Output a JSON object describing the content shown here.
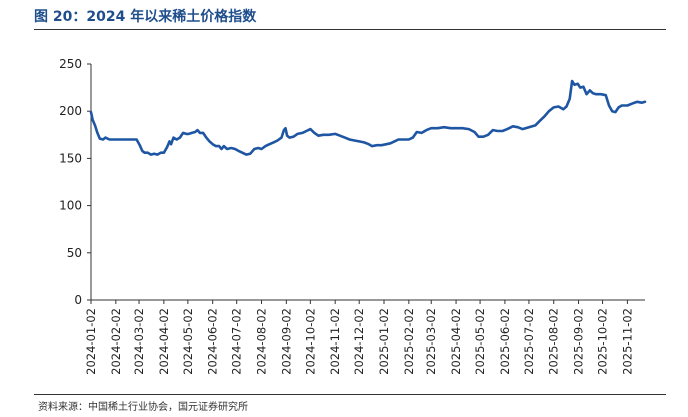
{
  "header": {
    "title": "图 20：2024 年以来稀土价格指数"
  },
  "footer": {
    "source": "资料来源：中国稀土行业协会，国元证券研究所"
  },
  "chart_data": {
    "type": "line",
    "title": "",
    "xlabel": "",
    "ylabel": "",
    "ylim": [
      0,
      250
    ],
    "yticks": [
      0,
      50,
      100,
      150,
      200,
      250
    ],
    "xlim": [
      "2024-01-02",
      "2025-11-24"
    ],
    "xticks": [
      "2024-01-02",
      "2024-02-02",
      "2024-03-02",
      "2024-04-02",
      "2024-05-02",
      "2024-06-02",
      "2024-07-02",
      "2024-08-02",
      "2024-09-02",
      "2024-10-02",
      "2024-11-02",
      "2024-12-02",
      "2025-01-02",
      "2025-02-02",
      "2025-03-02",
      "2025-04-02",
      "2025-05-02",
      "2025-06-02",
      "2025-07-02",
      "2025-08-02",
      "2025-09-02",
      "2025-10-02",
      "2025-11-02"
    ],
    "grid": false,
    "legend": "none",
    "color": "#1f56a3",
    "series": [
      {
        "name": "",
        "points": [
          [
            "2024-01-02",
            199
          ],
          [
            "2024-01-04",
            191
          ],
          [
            "2024-01-07",
            185
          ],
          [
            "2024-01-10",
            177
          ],
          [
            "2024-01-13",
            171
          ],
          [
            "2024-01-17",
            170
          ],
          [
            "2024-01-20",
            172
          ],
          [
            "2024-01-25",
            170
          ],
          [
            "2024-02-02",
            170
          ],
          [
            "2024-02-15",
            170
          ],
          [
            "2024-02-28",
            170
          ],
          [
            "2024-03-03",
            164
          ],
          [
            "2024-03-06",
            158
          ],
          [
            "2024-03-09",
            156
          ],
          [
            "2024-03-13",
            156
          ],
          [
            "2024-03-17",
            154
          ],
          [
            "2024-03-21",
            155
          ],
          [
            "2024-03-25",
            154
          ],
          [
            "2024-03-29",
            156
          ],
          [
            "2024-04-02",
            156
          ],
          [
            "2024-04-06",
            162
          ],
          [
            "2024-04-09",
            168
          ],
          [
            "2024-04-11",
            165
          ],
          [
            "2024-04-14",
            172
          ],
          [
            "2024-04-18",
            170
          ],
          [
            "2024-04-22",
            172
          ],
          [
            "2024-04-26",
            177
          ],
          [
            "2024-04-30",
            176
          ],
          [
            "2024-05-03",
            176
          ],
          [
            "2024-05-07",
            177
          ],
          [
            "2024-05-11",
            178
          ],
          [
            "2024-05-14",
            180
          ],
          [
            "2024-05-17",
            177
          ],
          [
            "2024-05-21",
            177
          ],
          [
            "2024-05-25",
            172
          ],
          [
            "2024-05-29",
            168
          ],
          [
            "2024-06-02",
            165
          ],
          [
            "2024-06-06",
            163
          ],
          [
            "2024-06-10",
            163
          ],
          [
            "2024-06-13",
            160
          ],
          [
            "2024-06-16",
            163
          ],
          [
            "2024-06-20",
            160
          ],
          [
            "2024-06-25",
            161
          ],
          [
            "2024-06-30",
            160
          ],
          [
            "2024-07-04",
            158
          ],
          [
            "2024-07-09",
            156
          ],
          [
            "2024-07-14",
            154
          ],
          [
            "2024-07-19",
            155
          ],
          [
            "2024-07-24",
            160
          ],
          [
            "2024-07-29",
            161
          ],
          [
            "2024-08-02",
            160
          ],
          [
            "2024-08-07",
            163
          ],
          [
            "2024-08-12",
            165
          ],
          [
            "2024-08-17",
            167
          ],
          [
            "2024-08-22",
            169
          ],
          [
            "2024-08-27",
            172
          ],
          [
            "2024-08-30",
            180
          ],
          [
            "2024-09-01",
            182
          ],
          [
            "2024-09-03",
            174
          ],
          [
            "2024-09-06",
            172
          ],
          [
            "2024-09-11",
            173
          ],
          [
            "2024-09-16",
            176
          ],
          [
            "2024-09-22",
            177
          ],
          [
            "2024-09-27",
            179
          ],
          [
            "2024-10-02",
            181
          ],
          [
            "2024-10-07",
            177
          ],
          [
            "2024-10-12",
            174
          ],
          [
            "2024-10-18",
            175
          ],
          [
            "2024-10-25",
            175
          ],
          [
            "2024-11-02",
            176
          ],
          [
            "2024-11-08",
            174
          ],
          [
            "2024-11-14",
            172
          ],
          [
            "2024-11-20",
            170
          ],
          [
            "2024-11-26",
            169
          ],
          [
            "2024-12-02",
            168
          ],
          [
            "2024-12-08",
            167
          ],
          [
            "2024-12-14",
            165
          ],
          [
            "2024-12-18",
            163
          ],
          [
            "2024-12-24",
            164
          ],
          [
            "2024-12-30",
            164
          ],
          [
            "2025-01-05",
            165
          ],
          [
            "2025-01-10",
            166
          ],
          [
            "2025-01-15",
            168
          ],
          [
            "2025-01-20",
            170
          ],
          [
            "2025-01-28",
            170
          ],
          [
            "2025-02-02",
            170
          ],
          [
            "2025-02-07",
            172
          ],
          [
            "2025-02-12",
            178
          ],
          [
            "2025-02-18",
            177
          ],
          [
            "2025-02-24",
            180
          ],
          [
            "2025-03-02",
            182
          ],
          [
            "2025-03-10",
            182
          ],
          [
            "2025-03-18",
            183
          ],
          [
            "2025-03-26",
            182
          ],
          [
            "2025-04-02",
            182
          ],
          [
            "2025-04-10",
            182
          ],
          [
            "2025-04-18",
            181
          ],
          [
            "2025-04-25",
            178
          ],
          [
            "2025-04-30",
            173
          ],
          [
            "2025-05-06",
            173
          ],
          [
            "2025-05-12",
            175
          ],
          [
            "2025-05-18",
            180
          ],
          [
            "2025-05-24",
            179
          ],
          [
            "2025-05-30",
            179
          ],
          [
            "2025-06-05",
            181
          ],
          [
            "2025-06-12",
            184
          ],
          [
            "2025-06-18",
            183
          ],
          [
            "2025-06-24",
            181
          ],
          [
            "2025-07-02",
            183
          ],
          [
            "2025-07-10",
            185
          ],
          [
            "2025-07-16",
            190
          ],
          [
            "2025-07-22",
            195
          ],
          [
            "2025-07-27",
            200
          ],
          [
            "2025-08-02",
            204
          ],
          [
            "2025-08-08",
            205
          ],
          [
            "2025-08-14",
            202
          ],
          [
            "2025-08-18",
            205
          ],
          [
            "2025-08-22",
            213
          ],
          [
            "2025-08-25",
            232
          ],
          [
            "2025-08-28",
            228
          ],
          [
            "2025-09-01",
            229
          ],
          [
            "2025-09-04",
            225
          ],
          [
            "2025-09-08",
            226
          ],
          [
            "2025-09-12",
            218
          ],
          [
            "2025-09-16",
            222
          ],
          [
            "2025-09-20",
            219
          ],
          [
            "2025-09-24",
            218
          ],
          [
            "2025-09-30",
            218
          ],
          [
            "2025-10-06",
            217
          ],
          [
            "2025-10-10",
            206
          ],
          [
            "2025-10-14",
            200
          ],
          [
            "2025-10-18",
            199
          ],
          [
            "2025-10-22",
            204
          ],
          [
            "2025-10-26",
            206
          ],
          [
            "2025-11-02",
            206
          ],
          [
            "2025-11-08",
            208
          ],
          [
            "2025-11-14",
            210
          ],
          [
            "2025-11-20",
            209
          ],
          [
            "2025-11-24",
            210
          ]
        ]
      }
    ]
  }
}
